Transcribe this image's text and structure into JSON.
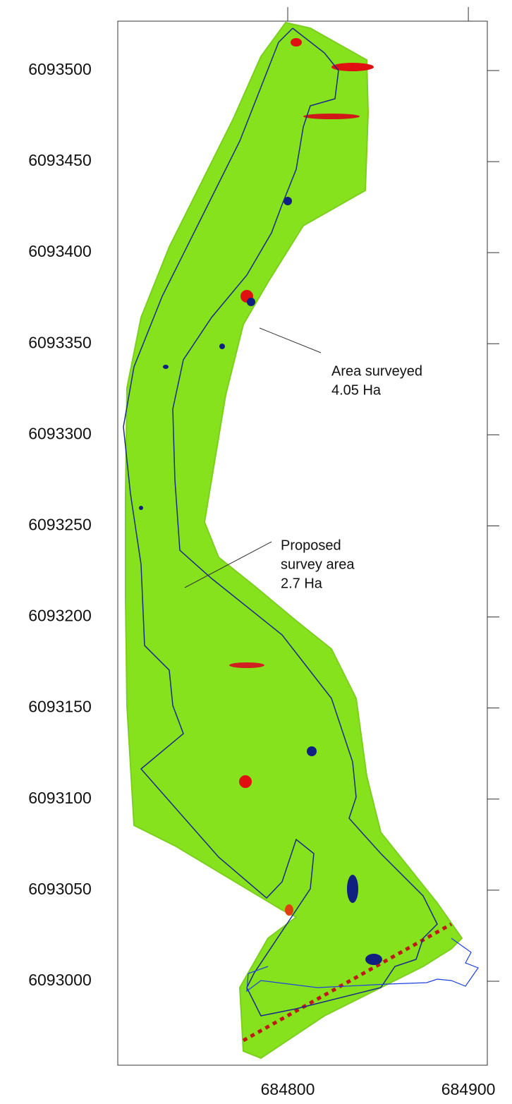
{
  "map": {
    "xlim": [
      684705.9,
      684910.5
    ],
    "ylim": [
      6092953.9,
      6093527.1
    ],
    "xticks": [
      684800,
      684900
    ],
    "yticks": [
      6093000,
      6093050,
      6093100,
      6093150,
      6093200,
      6093250,
      6093300,
      6093350,
      6093400,
      6093450,
      6093500
    ],
    "annotations": [
      {
        "lines": [
          "Area surveyed",
          "4.05 Ha"
        ]
      },
      {
        "lines": [
          "Proposed",
          "survey area",
          "2.7 Ha"
        ]
      }
    ]
  }
}
